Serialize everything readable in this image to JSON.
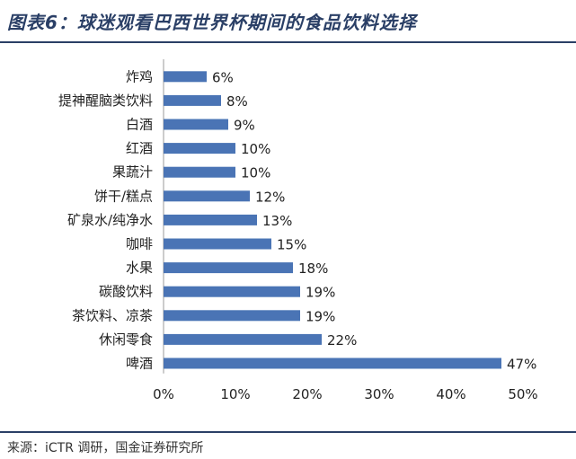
{
  "title": "图表6：球迷观看巴西世界杯期间的食品饮料选择",
  "source": "来源：iCTR 调研，国金证券研究所",
  "colors": {
    "bar": "#4a74b5",
    "title": "#2a3f66",
    "rule": "#2a3f66"
  },
  "chart_data": {
    "type": "bar",
    "orientation": "horizontal",
    "categories": [
      "炸鸡",
      "提神醒脑类饮料",
      "白酒",
      "红酒",
      "果蔬汁",
      "饼干/糕点",
      "矿泉水/纯净水",
      "咖啡",
      "水果",
      "碳酸饮料",
      "茶饮料、凉茶",
      "休闲零食",
      "啤酒"
    ],
    "values": [
      6,
      8,
      9,
      10,
      10,
      12,
      13,
      15,
      18,
      19,
      19,
      22,
      47
    ],
    "value_labels": [
      "6%",
      "8%",
      "9%",
      "10%",
      "10%",
      "12%",
      "13%",
      "15%",
      "18%",
      "19%",
      "19%",
      "22%",
      "47%"
    ],
    "xlim": [
      0,
      50
    ],
    "xticks": [
      0,
      10,
      20,
      30,
      40,
      50
    ],
    "xtick_labels": [
      "0%",
      "10%",
      "20%",
      "30%",
      "40%",
      "50%"
    ],
    "grid": false,
    "legend": "none"
  }
}
